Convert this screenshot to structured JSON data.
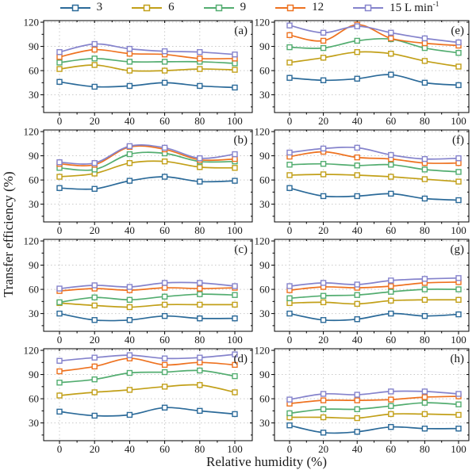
{
  "figure": {
    "y_axis_title": "Transfer efficiency (%)",
    "x_axis_title": "Relative humidity (%)",
    "frame_color": "#000000",
    "grid_color": "#c9c9c9",
    "background": "#ffffff"
  },
  "legend": {
    "position": "top",
    "items": [
      {
        "label": "3",
        "sup": "",
        "color": "#2b6a99"
      },
      {
        "label": "6",
        "sup": "",
        "color": "#c2a019"
      },
      {
        "label": "9",
        "sup": "",
        "color": "#53ad70"
      },
      {
        "label": "12",
        "sup": "",
        "color": "#ee7220"
      },
      {
        "label": "15 L min",
        "sup": "-1",
        "color": "#8583cc"
      }
    ]
  },
  "axes": {
    "x_ticks": [
      0,
      20,
      40,
      60,
      80,
      100
    ],
    "x_minor_ticks": [
      10,
      30,
      50,
      70,
      90
    ],
    "y_ticks": [
      30,
      60,
      90,
      120
    ],
    "y_minor_ticks": [
      15,
      45,
      75,
      105
    ],
    "ylim": [
      8,
      122
    ],
    "grid": true
  },
  "chart_data": [
    {
      "panel": "(a)",
      "type": "line",
      "x": [
        0,
        20,
        40,
        60,
        80,
        100
      ],
      "series": [
        {
          "name": "3",
          "values": [
            46,
            40,
            41,
            45,
            41,
            39
          ]
        },
        {
          "name": "6",
          "values": [
            62,
            67,
            60,
            60,
            62,
            61
          ]
        },
        {
          "name": "9",
          "values": [
            70,
            75,
            71,
            71,
            71,
            69
          ]
        },
        {
          "name": "12",
          "values": [
            77,
            86,
            81,
            80,
            75,
            75
          ]
        },
        {
          "name": "15",
          "values": [
            83,
            93,
            87,
            84,
            83,
            80
          ]
        }
      ]
    },
    {
      "panel": "(b)",
      "type": "line",
      "x": [
        0,
        20,
        40,
        60,
        80,
        100
      ],
      "series": [
        {
          "name": "3",
          "values": [
            50,
            49,
            59,
            64,
            58,
            59
          ]
        },
        {
          "name": "6",
          "values": [
            64,
            68,
            81,
            83,
            76,
            75
          ]
        },
        {
          "name": "9",
          "values": [
            75,
            73,
            92,
            93,
            83,
            83
          ]
        },
        {
          "name": "12",
          "values": [
            80,
            79,
            101,
            98,
            85,
            86
          ]
        },
        {
          "name": "15",
          "values": [
            82,
            81,
            102,
            100,
            87,
            92
          ]
        }
      ]
    },
    {
      "panel": "(c)",
      "type": "line",
      "x": [
        0,
        20,
        40,
        60,
        80,
        100
      ],
      "series": [
        {
          "name": "3",
          "values": [
            30,
            22,
            22,
            27,
            24,
            24
          ]
        },
        {
          "name": "6",
          "values": [
            43,
            40,
            38,
            41,
            41,
            41
          ]
        },
        {
          "name": "9",
          "values": [
            44,
            50,
            47,
            51,
            54,
            53
          ]
        },
        {
          "name": "12",
          "values": [
            58,
            61,
            59,
            62,
            61,
            62
          ]
        },
        {
          "name": "15",
          "values": [
            61,
            65,
            63,
            68,
            68,
            64
          ]
        }
      ]
    },
    {
      "panel": "(d)",
      "type": "line",
      "x": [
        0,
        20,
        40,
        60,
        80,
        100
      ],
      "series": [
        {
          "name": "3",
          "values": [
            44,
            39,
            40,
            49,
            45,
            41
          ]
        },
        {
          "name": "6",
          "values": [
            64,
            68,
            71,
            75,
            77,
            68
          ]
        },
        {
          "name": "9",
          "values": [
            80,
            84,
            92,
            93,
            95,
            88
          ]
        },
        {
          "name": "12",
          "values": [
            94,
            100,
            110,
            102,
            105,
            102
          ]
        },
        {
          "name": "15",
          "values": [
            107,
            111,
            114,
            110,
            111,
            115
          ]
        }
      ]
    },
    {
      "panel": "(e)",
      "type": "line",
      "x": [
        0,
        20,
        40,
        60,
        80,
        100
      ],
      "series": [
        {
          "name": "3",
          "values": [
            51,
            48,
            50,
            55,
            45,
            42
          ]
        },
        {
          "name": "6",
          "values": [
            70,
            76,
            83,
            81,
            72,
            65
          ]
        },
        {
          "name": "9",
          "values": [
            89,
            88,
            97,
            99,
            88,
            82
          ]
        },
        {
          "name": "12",
          "values": [
            104,
            97,
            117,
            100,
            94,
            91
          ]
        },
        {
          "name": "15",
          "values": [
            116,
            107,
            115,
            107,
            100,
            95
          ]
        }
      ]
    },
    {
      "panel": "(f)",
      "type": "line",
      "x": [
        0,
        20,
        40,
        60,
        80,
        100
      ],
      "series": [
        {
          "name": "3",
          "values": [
            50,
            40,
            40,
            43,
            37,
            35
          ]
        },
        {
          "name": "6",
          "values": [
            66,
            67,
            66,
            64,
            61,
            58
          ]
        },
        {
          "name": "9",
          "values": [
            79,
            80,
            78,
            79,
            73,
            70
          ]
        },
        {
          "name": "12",
          "values": [
            89,
            95,
            88,
            86,
            81,
            81
          ]
        },
        {
          "name": "15",
          "values": [
            94,
            99,
            100,
            91,
            86,
            87
          ]
        }
      ]
    },
    {
      "panel": "(g)",
      "type": "line",
      "x": [
        0,
        20,
        40,
        60,
        80,
        100
      ],
      "series": [
        {
          "name": "3",
          "values": [
            30,
            22,
            23,
            30,
            27,
            29
          ]
        },
        {
          "name": "6",
          "values": [
            43,
            44,
            42,
            46,
            47,
            47
          ]
        },
        {
          "name": "9",
          "values": [
            49,
            52,
            53,
            57,
            60,
            60
          ]
        },
        {
          "name": "12",
          "values": [
            59,
            63,
            62,
            64,
            68,
            69
          ]
        },
        {
          "name": "15",
          "values": [
            64,
            68,
            66,
            71,
            73,
            74
          ]
        }
      ]
    },
    {
      "panel": "(h)",
      "type": "line",
      "x": [
        0,
        20,
        40,
        60,
        80,
        100
      ],
      "series": [
        {
          "name": "3",
          "values": [
            27,
            18,
            19,
            25,
            23,
            23
          ]
        },
        {
          "name": "6",
          "values": [
            37,
            37,
            36,
            41,
            41,
            40
          ]
        },
        {
          "name": "9",
          "values": [
            42,
            47,
            47,
            51,
            55,
            53
          ]
        },
        {
          "name": "12",
          "values": [
            54,
            58,
            58,
            59,
            62,
            63
          ]
        },
        {
          "name": "15",
          "values": [
            59,
            66,
            65,
            69,
            69,
            66
          ]
        }
      ]
    }
  ]
}
